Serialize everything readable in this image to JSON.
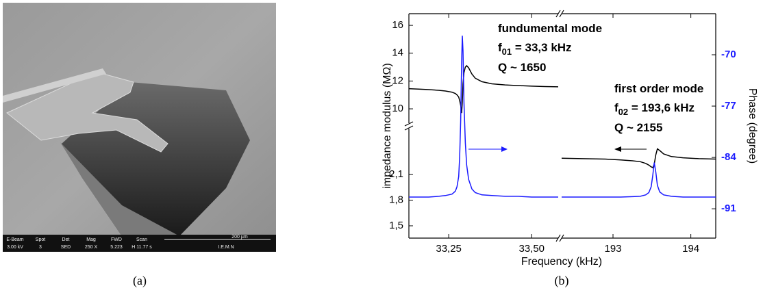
{
  "image": {
    "info_bar": [
      {
        "label": "E-Beam",
        "value": "3.00 kV"
      },
      {
        "label": "Spot",
        "value": "3"
      },
      {
        "label": "Det",
        "value": "SED"
      },
      {
        "label": "Mag",
        "value": "250 X"
      },
      {
        "label": "FWD",
        "value": "5.223"
      },
      {
        "label": "Scan",
        "value": "H 11.77 s"
      }
    ],
    "scale_bar": "200 µm",
    "lab": "I.E.M.N"
  },
  "captions": {
    "a": "(a)",
    "b": "(b)"
  },
  "chart_data": {
    "type": "line",
    "x_label": "Frequency (kHz)",
    "y_label": "impedance modulus (MΩ)",
    "y2_label": "Phase (degree)",
    "x_segments": [
      {
        "xlim": [
          33.13,
          33.58
        ],
        "xticks": [
          {
            "value": 33.25,
            "label": "33,25"
          },
          {
            "value": 33.5,
            "label": "33,50"
          }
        ]
      },
      {
        "xlim": [
          192.34,
          194.32
        ],
        "xticks": [
          193,
          194
        ]
      }
    ],
    "y_segments": [
      {
        "ylim": [
          1.356,
          2.636
        ],
        "yticks": [
          {
            "value": 1.5,
            "label": "1,5"
          },
          {
            "value": 1.8,
            "label": "1,8"
          },
          {
            "value": 2.1,
            "label": "2,1"
          }
        ]
      },
      {
        "ylim": [
          8.97,
          16.84
        ],
        "yticks": [
          10,
          12,
          14,
          16
        ]
      }
    ],
    "y2lim": [
      -95.0,
      -64.4
    ],
    "y2ticks": [
      -91,
      -84,
      -77,
      -70
    ],
    "y2_color": "#1a1aff",
    "series": [
      {
        "color": "#000000",
        "axis": "y",
        "x": [
          33.13,
          33.16,
          33.19,
          33.22,
          33.24,
          33.26,
          33.27,
          33.275,
          33.28,
          33.283,
          33.286,
          33.289,
          33.291,
          33.293,
          33.296,
          33.3,
          33.304,
          33.31,
          33.32,
          33.33,
          33.35,
          33.38,
          33.42,
          33.46,
          33.5,
          33.54,
          33.58,
          null,
          192.34,
          192.6,
          192.9,
          193.1,
          193.25,
          193.35,
          193.42,
          193.46,
          193.49,
          193.51,
          193.53,
          193.55,
          193.57,
          193.6,
          193.65,
          193.75,
          193.9,
          194.1,
          194.32
        ],
        "values": [
          11.45,
          11.42,
          11.38,
          11.33,
          11.28,
          11.2,
          11.1,
          11.0,
          10.85,
          10.6,
          10.25,
          9.7,
          10.5,
          11.8,
          12.6,
          13.0,
          13.1,
          12.95,
          12.5,
          12.2,
          11.95,
          11.8,
          11.72,
          11.67,
          11.63,
          11.6,
          11.58,
          null,
          2.29,
          2.285,
          2.28,
          2.27,
          2.26,
          2.25,
          2.23,
          2.21,
          2.19,
          2.18,
          2.22,
          2.33,
          2.4,
          2.38,
          2.34,
          2.31,
          2.295,
          2.285,
          2.28
        ]
      },
      {
        "color": "#1a1aff",
        "axis": "y2",
        "x": [
          33.13,
          33.16,
          33.19,
          33.22,
          33.24,
          33.26,
          33.27,
          33.275,
          33.28,
          33.283,
          33.286,
          33.289,
          33.291,
          33.293,
          33.296,
          33.3,
          33.304,
          33.31,
          33.32,
          33.33,
          33.35,
          33.38,
          33.42,
          33.46,
          33.5,
          33.54,
          33.58,
          null,
          192.34,
          192.6,
          192.9,
          193.1,
          193.25,
          193.35,
          193.42,
          193.46,
          193.49,
          193.51,
          193.53,
          193.55,
          193.57,
          193.6,
          193.65,
          193.75,
          193.9,
          194.1,
          194.32
        ],
        "values": [
          -89.4,
          -89.4,
          -89.4,
          -89.3,
          -89.2,
          -89.0,
          -88.6,
          -88.0,
          -86.6,
          -84.0,
          -79.0,
          -71.0,
          -67.4,
          -69.5,
          -76.5,
          -82.0,
          -85.0,
          -87.0,
          -88.3,
          -88.8,
          -89.1,
          -89.2,
          -89.3,
          -89.3,
          -89.4,
          -89.4,
          -89.4,
          null,
          -89.4,
          -89.4,
          -89.4,
          -89.4,
          -89.35,
          -89.3,
          -89.1,
          -88.8,
          -88.0,
          -86.5,
          -84.7,
          -86.0,
          -87.8,
          -88.7,
          -89.1,
          -89.3,
          -89.4,
          -89.4,
          -89.4
        ]
      }
    ],
    "annotations": [
      {
        "line1": "fundumental mode",
        "f": "f",
        "sub": "01",
        "tail": " = 33,3 kHz",
        "q": "Q ~ 1650"
      },
      {
        "line1": "first order mode",
        "f": "f",
        "sub": "02",
        "tail": " = 193,6 kHz",
        "q": "Q ~ 2155"
      }
    ]
  }
}
